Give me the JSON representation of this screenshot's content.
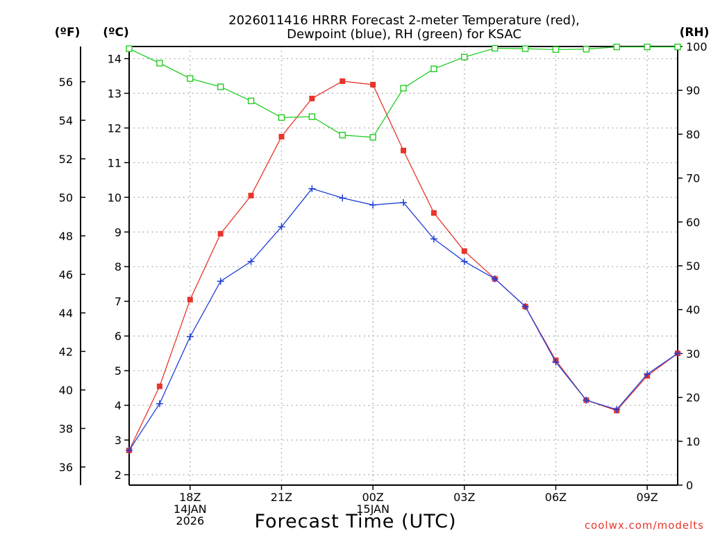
{
  "chart_data": {
    "type": "line",
    "title_lines": [
      "2026011416 HRRR Forecast 2-meter Temperature (red),",
      "Dewpoint (blue), RH (green) for KSAC"
    ],
    "xlabel": "Forecast Time (UTC)",
    "credit": "coolwx.com/modelts",
    "units": {
      "fahrenheit": "(ºF)",
      "celsius": "(ºC)",
      "rh": "(RH)"
    },
    "x": [
      16,
      17,
      18,
      19,
      20,
      21,
      22,
      23,
      24,
      25,
      26,
      27,
      28,
      29,
      30,
      31,
      32,
      33,
      34
    ],
    "xlim": [
      16,
      34
    ],
    "x_ticks": [
      {
        "x": 18,
        "lines": [
          "18Z",
          "14JAN",
          "2026"
        ]
      },
      {
        "x": 21,
        "lines": [
          "21Z"
        ]
      },
      {
        "x": 24,
        "lines": [
          "00Z",
          "15JAN"
        ]
      },
      {
        "x": 27,
        "lines": [
          "03Z"
        ]
      },
      {
        "x": 30,
        "lines": [
          "06Z"
        ]
      },
      {
        "x": 33,
        "lines": [
          "09Z"
        ]
      }
    ],
    "celsius_axis": {
      "ylim": [
        1.7,
        14.35
      ],
      "ticks": [
        "2",
        "3",
        "4",
        "5",
        "6",
        "7",
        "8",
        "9",
        "10",
        "11",
        "12",
        "13",
        "14"
      ]
    },
    "fahrenheit_axis": {
      "ticks": [
        "36",
        "38",
        "40",
        "42",
        "44",
        "46",
        "48",
        "50",
        "52",
        "54",
        "56"
      ]
    },
    "rh_axis": {
      "ylim": [
        0,
        100
      ],
      "ticks": [
        "0",
        "10",
        "20",
        "30",
        "40",
        "50",
        "60",
        "70",
        "80",
        "90",
        "100"
      ]
    },
    "series": [
      {
        "name": "Temperature",
        "axis": "celsius",
        "color": "#e8342b",
        "marker": "filled-square",
        "values": [
          2.7,
          4.55,
          7.05,
          8.95,
          10.05,
          11.75,
          12.85,
          13.35,
          13.25,
          11.35,
          9.55,
          8.45,
          7.65,
          6.85,
          5.3,
          4.15,
          3.85,
          4.85,
          5.5
        ]
      },
      {
        "name": "Dewpoint",
        "axis": "celsius",
        "color": "#1f3fd8",
        "marker": "plus",
        "values": [
          2.7,
          4.05,
          5.98,
          7.58,
          8.15,
          9.15,
          10.25,
          9.98,
          9.78,
          9.85,
          8.8,
          8.15,
          7.65,
          6.85,
          5.25,
          4.15,
          3.88,
          4.9,
          5.5
        ]
      },
      {
        "name": "RH",
        "axis": "rh",
        "color": "#22cc22",
        "marker": "open-square",
        "values": [
          99.5,
          96.2,
          92.7,
          90.8,
          87.6,
          83.8,
          84.0,
          79.8,
          79.3,
          90.5,
          94.9,
          97.6,
          99.6,
          99.5,
          99.3,
          99.4,
          99.9,
          99.9,
          99.9
        ]
      }
    ]
  }
}
